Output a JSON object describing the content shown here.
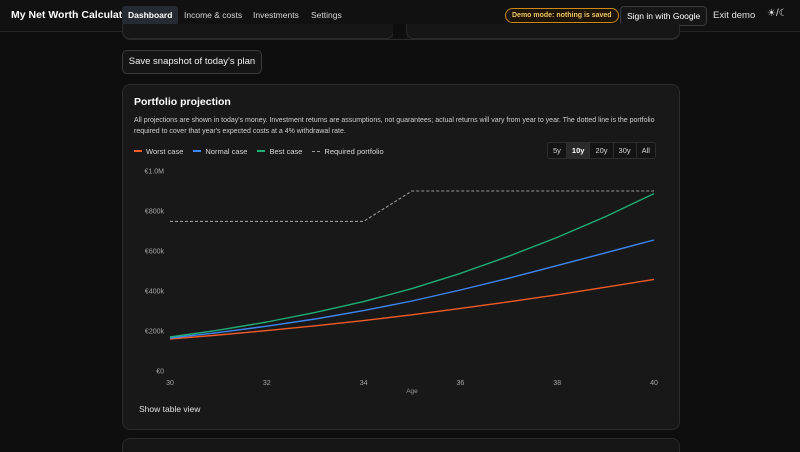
{
  "app": {
    "title": "My Net Worth Calculator"
  },
  "nav": [
    {
      "label": "Dashboard",
      "active": true
    },
    {
      "label": "Income & costs",
      "active": false
    },
    {
      "label": "Investments",
      "active": false
    },
    {
      "label": "Settings",
      "active": false
    }
  ],
  "header": {
    "demo_badge": "Demo mode: nothing is saved",
    "signin_label": "Sign in with Google",
    "exit_label": "Exit demo",
    "theme_toggle": "☀/☾",
    "theme_icon": "sun-moon-icon"
  },
  "snapshot_label": "Save snapshot of today's plan",
  "projection": {
    "title": "Portfolio projection",
    "description": "All projections are shown in today's money. Investment returns are assumptions, not guarantees; actual returns will vary from year to year. The dotted line is the portfolio required to cover that year's expected costs at a 4% withdrawal rate.",
    "ranges": [
      "5y",
      "10y",
      "20y",
      "30y",
      "All"
    ],
    "active_range": "10y",
    "table_view_label": "Show table view"
  },
  "chart_data": {
    "type": "line",
    "xlabel": "Age",
    "ylabel": "",
    "x": [
      30,
      31,
      32,
      33,
      34,
      35,
      36,
      37,
      38,
      39,
      40
    ],
    "x_ticks": [
      30,
      32,
      34,
      36,
      38,
      40
    ],
    "y_ticks": [
      0,
      200000,
      400000,
      600000,
      800000,
      1000000
    ],
    "y_tick_labels": [
      "€0",
      "€200k",
      "€400k",
      "€600k",
      "€800k",
      "€1.0M"
    ],
    "xlim": [
      30,
      40
    ],
    "ylim": [
      0,
      1000000
    ],
    "grid": false,
    "legend_position": "top-left",
    "series": [
      {
        "name": "Worst case",
        "color": "#f05a28",
        "dashed": false,
        "values": [
          160000,
          180000,
          202000,
          226000,
          252000,
          281000,
          313000,
          346000,
          381000,
          419000,
          458000
        ]
      },
      {
        "name": "Normal case",
        "color": "#3d86f5",
        "dashed": false,
        "values": [
          165000,
          192000,
          224000,
          260000,
          302000,
          350000,
          405000,
          464000,
          527000,
          591000,
          655000
        ]
      },
      {
        "name": "Best case",
        "color": "#1fae76",
        "dashed": false,
        "values": [
          170000,
          204000,
          245000,
          293000,
          347000,
          412000,
          488000,
          574000,
          668000,
          772000,
          887000
        ]
      },
      {
        "name": "Required portfolio",
        "color": "#9a9a9a",
        "dashed": true,
        "x": [
          30,
          34,
          35,
          40
        ],
        "values": [
          748000,
          748000,
          900000,
          900000
        ]
      }
    ]
  }
}
